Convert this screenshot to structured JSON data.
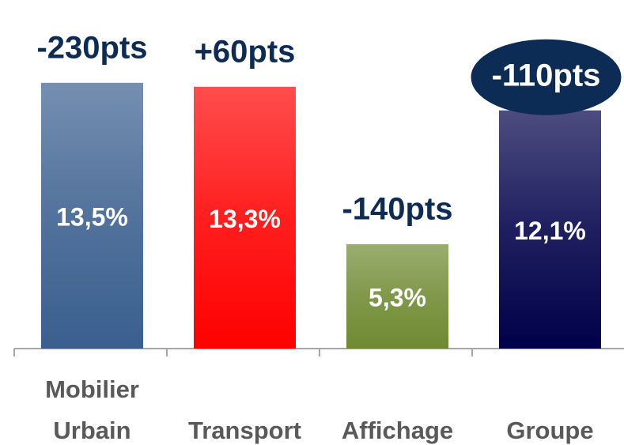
{
  "chart_data": {
    "type": "bar",
    "categories": [
      "Mobilier Urbain",
      "Transport",
      "Affichage",
      "Groupe"
    ],
    "values": [
      13.5,
      13.3,
      5.3,
      12.1
    ],
    "value_labels": [
      "13,5%",
      "13,3%",
      "5,3%",
      "12,1%"
    ],
    "colors": [
      "#3a5f8f",
      "#ff0000",
      "#6f8a32",
      "#00004a"
    ],
    "annotations": [
      "-230pts",
      "+60pts",
      "-140pts",
      "-110pts"
    ],
    "highlight": 3
  }
}
